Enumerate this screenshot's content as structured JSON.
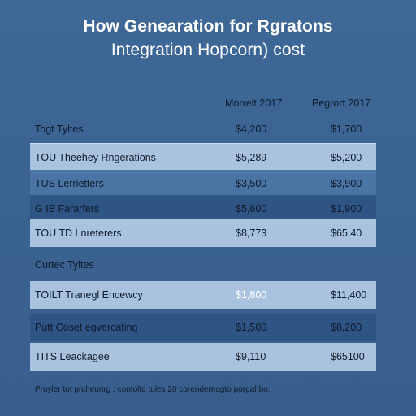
{
  "title": {
    "line1": "How Genearation for Rgratons",
    "line2": "Integration Hopcorn) cost"
  },
  "columns": {
    "col1": "Morrelt 2017",
    "col2": "Pegrort 2017"
  },
  "section1": {
    "label": "Togt Tyltes",
    "v1": "$4,200",
    "v2": "$1,700",
    "rows": [
      {
        "label": "TOU Theehey Rngerations",
        "v1": "$5,289",
        "v2": "$5,200"
      },
      {
        "label": "TUS Lerrietters",
        "v1": "$3,500",
        "v2": "$3,900"
      },
      {
        "label": "G IB Fararfers",
        "v1": "$5,600",
        "v2": "$1,900"
      },
      {
        "label": "TOU TD Lnreterers",
        "v1": "$8,773",
        "v2": "$65,40"
      }
    ]
  },
  "section2": {
    "label": "Curtec Tyltes",
    "rows": [
      {
        "label": "TOILT Tranegl Encewcy",
        "v1": "$1,800",
        "v2": "$11,400"
      },
      {
        "label": "Putt Coset egvercating",
        "v1": "$1,500",
        "v2": "$8,200"
      },
      {
        "label": "TITS Leackagee",
        "v1": "$9,110",
        "v2": "$65100"
      }
    ]
  },
  "footer": "Proyler tot prcheurirg : contolta tules 20 corendereagto porpahbo.",
  "colors": {
    "background": "#3b6494",
    "row_light": "#a9c3de",
    "row_dark": "#2f5584",
    "row_mid": "#4a74a3",
    "rule": "#cfe0f1"
  }
}
